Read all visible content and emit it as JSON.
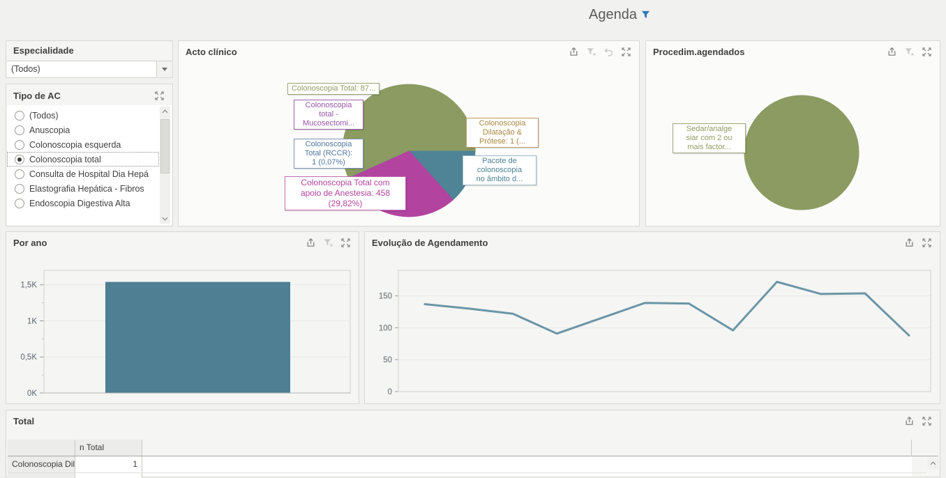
{
  "page_title": {
    "text": "Agenda"
  },
  "colors": {
    "accent_filter_blue": "#2f7ac0",
    "olive": "#8c9b61",
    "teal_slice": "#4e8496",
    "magenta": "#b2449f",
    "purple_sliver": "#8f5ca6",
    "steelblue_sliver": "#5a7da3",
    "tan_sliver": "#b08a4e",
    "bar_teal": "#4e7f93",
    "line_teal": "#6b95a6"
  },
  "especialidade": {
    "title": "Especialidade",
    "value": "(Todos)"
  },
  "tipo_ac": {
    "title": "Tipo de AC",
    "items": [
      {
        "label": "(Todos)",
        "selected": false
      },
      {
        "label": "Anuscopia",
        "selected": false
      },
      {
        "label": "Colonoscopia esquerda",
        "selected": false
      },
      {
        "label": "Colonoscopia total",
        "selected": true
      },
      {
        "label": "Consulta de Hospital Dia Hepá",
        "selected": false
      },
      {
        "label": "Elastografia Hepática - Fibros",
        "selected": false
      },
      {
        "label": "Endoscopia Digestiva Alta",
        "selected": false
      }
    ]
  },
  "panels": {
    "acto_clinico": {
      "title": "Acto clínico"
    },
    "procedim_agendados": {
      "title": "Procedim.agendados"
    },
    "por_ano": {
      "title": "Por ano"
    },
    "evolucao": {
      "title": "Evolução de Agendamento"
    },
    "total": {
      "title": "Total"
    }
  },
  "total_table": {
    "columns": [
      "",
      "n Total"
    ],
    "rows": [
      {
        "name": "Colonoscopia Dil...",
        "n_total": "1"
      }
    ]
  },
  "chart_data": [
    {
      "id": "acto_clinico_pie",
      "type": "pie",
      "title": "Acto clínico",
      "direction": "clockwise",
      "start_angle_deg": 0,
      "slices": [
        {
          "name": "Colonoscopia Dilatação & Prótese",
          "pct": 0.07,
          "color": "#b08a4e",
          "callout": "Colonoscopia\nDilatação &\nPrótese: 1 (..."
        },
        {
          "name": "Pacote de colonoscopia no âmbito d...",
          "pct": 13.29,
          "color": "#4e8496",
          "callout": "Pacote de\ncolonoscopia\nno âmbito d..."
        },
        {
          "name": "Colonoscopia Total com apoio de Anestesia",
          "pct": 29.82,
          "value": 458,
          "color": "#b2449f",
          "callout": "Colonoscopia Total com\napoio de Anestesia: 458\n(29,82%)"
        },
        {
          "name": "Colonoscopia total - Mucosectomi...",
          "pct": 0.07,
          "color": "#8f5ca6",
          "callout": "Colonoscopia\ntotal -\nMucosectomi..."
        },
        {
          "name": "Colonoscopia Total (RCCR)",
          "pct": 0.07,
          "value": 1,
          "color": "#5a7da3",
          "callout": "Colonoscopia\nTotal (RCCR):\n1 (0,07%)"
        },
        {
          "name": "Colonoscopia Total",
          "pct": 56.68,
          "color": "#8c9b61",
          "callout": "Colonoscopia Total: 87..."
        }
      ]
    },
    {
      "id": "procedim_pie",
      "type": "pie",
      "title": "Procedim.agendados",
      "slices": [
        {
          "name": "Sedar/analgesiar com 2 ou mais factor...",
          "pct": 100,
          "color": "#8c9b61",
          "callout": "Sedar/analge\nsiar com 2 ou\nmais factor..."
        }
      ]
    },
    {
      "id": "por_ano_bar",
      "type": "bar",
      "title": "Por ano",
      "categories": [
        ""
      ],
      "values": [
        1540
      ],
      "color": "#4e7f93",
      "ylim": [
        0,
        1700
      ],
      "yticks": [
        {
          "v": 0,
          "label": "0K"
        },
        {
          "v": 500,
          "label": "0,5K"
        },
        {
          "v": 1000,
          "label": "1K"
        },
        {
          "v": 1500,
          "label": "1,5K"
        }
      ],
      "yticks_minor": [
        250,
        750,
        1250
      ],
      "x_tick_labels": []
    },
    {
      "id": "evolucao_line",
      "type": "line",
      "title": "Evolução de Agendamento",
      "values": [
        137,
        130,
        122,
        91,
        115,
        139,
        138,
        96,
        172,
        153,
        154,
        88
      ],
      "color": "#6b95a6",
      "ylim": [
        0,
        190
      ],
      "yticks": [
        {
          "v": 0,
          "label": "0"
        },
        {
          "v": 50,
          "label": "50"
        },
        {
          "v": 100,
          "label": "100"
        },
        {
          "v": 150,
          "label": "150"
        }
      ],
      "x_tick_labels": []
    }
  ]
}
